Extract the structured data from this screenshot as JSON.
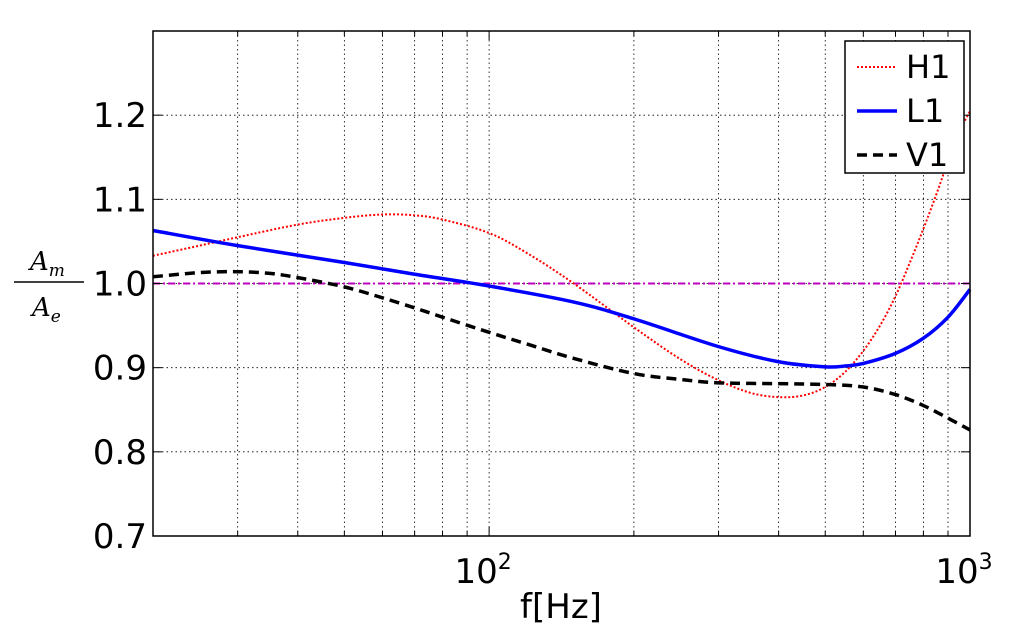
{
  "chart_data": {
    "type": "line",
    "title": "",
    "xlabel": "f[Hz]",
    "ylabel": {
      "numerator": "A",
      "numerator_sub": "m",
      "denominator": "A",
      "denominator_sub": "e"
    },
    "xscale": "log",
    "xlim": [
      20,
      1000
    ],
    "ylim": [
      0.7,
      1.3
    ],
    "grid": true,
    "legend_position": "top-right",
    "x_ticks": [
      {
        "value": 100,
        "base": "10",
        "exp": "2"
      },
      {
        "value": 1000,
        "base": "10",
        "exp": "3"
      }
    ],
    "y_ticks": [
      {
        "value": 0.7,
        "label": "0.7"
      },
      {
        "value": 0.8,
        "label": "0.8"
      },
      {
        "value": 0.9,
        "label": "0.9"
      },
      {
        "value": 1.0,
        "label": "1.0"
      },
      {
        "value": 1.1,
        "label": "1.1"
      },
      {
        "value": 1.2,
        "label": "1.2"
      }
    ],
    "series": [
      {
        "name": "H1",
        "color": "#ff0000",
        "style": "dotted",
        "x": [
          20,
          25,
          30,
          40,
          50,
          60,
          70,
          80,
          100,
          120,
          150,
          200,
          250,
          300,
          350,
          400,
          450,
          500,
          550,
          600,
          650,
          700,
          750,
          800,
          850,
          900,
          950,
          1000
        ],
        "y": [
          1.033,
          1.045,
          1.055,
          1.07,
          1.078,
          1.082,
          1.081,
          1.076,
          1.06,
          1.036,
          1.0,
          0.948,
          0.91,
          0.885,
          0.87,
          0.865,
          0.867,
          0.877,
          0.895,
          0.92,
          0.95,
          0.985,
          1.025,
          1.065,
          1.105,
          1.145,
          1.18,
          1.205
        ]
      },
      {
        "name": "L1",
        "color": "#0000ff",
        "style": "solid",
        "x": [
          20,
          30,
          50,
          70,
          100,
          150,
          200,
          300,
          400,
          500,
          550,
          600,
          700,
          800,
          900,
          1000
        ],
        "y": [
          1.063,
          1.045,
          1.025,
          1.011,
          0.997,
          0.978,
          0.958,
          0.925,
          0.907,
          0.901,
          0.902,
          0.905,
          0.917,
          0.935,
          0.96,
          0.993
        ]
      },
      {
        "name": "V1",
        "color": "#000000",
        "style": "dashed",
        "x": [
          20,
          25,
          30,
          35,
          40,
          50,
          60,
          70,
          80,
          100,
          120,
          150,
          200,
          250,
          300,
          400,
          500,
          600,
          700,
          800,
          900,
          1000
        ],
        "y": [
          1.008,
          1.013,
          1.014,
          1.012,
          1.007,
          0.996,
          0.983,
          0.971,
          0.96,
          0.942,
          0.928,
          0.911,
          0.893,
          0.886,
          0.882,
          0.881,
          0.88,
          0.877,
          0.868,
          0.855,
          0.84,
          0.826
        ]
      },
      {
        "name": "",
        "color": "#bf00bf",
        "style": "dashdot",
        "x": [
          20,
          1000
        ],
        "y": [
          1.0,
          1.0
        ]
      }
    ]
  }
}
